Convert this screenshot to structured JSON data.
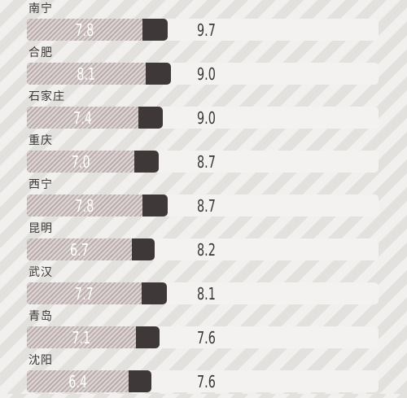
{
  "chart_data": {
    "type": "bar",
    "categories": [
      "南宁",
      "合肥",
      "石家庄",
      "重庆",
      "西宁",
      "昆明",
      "武汉",
      "青岛",
      "沈阳"
    ],
    "series": [
      {
        "values": [
          7.8,
          8.1,
          7.4,
          7.0,
          7.8,
          6.7,
          7.7,
          7.1,
          6.4
        ]
      },
      {
        "values": [
          9.7,
          9.0,
          9.0,
          8.7,
          8.7,
          8.2,
          8.1,
          7.6,
          7.6
        ]
      }
    ],
    "secondary_series_shown_as": "text",
    "xlim": [
      0,
      12
    ]
  },
  "colors": {
    "bar_dark": "#3e3838",
    "bar_hatch": "#d8cfcf",
    "track": "#f3f2f0",
    "text": "#3a3636"
  }
}
